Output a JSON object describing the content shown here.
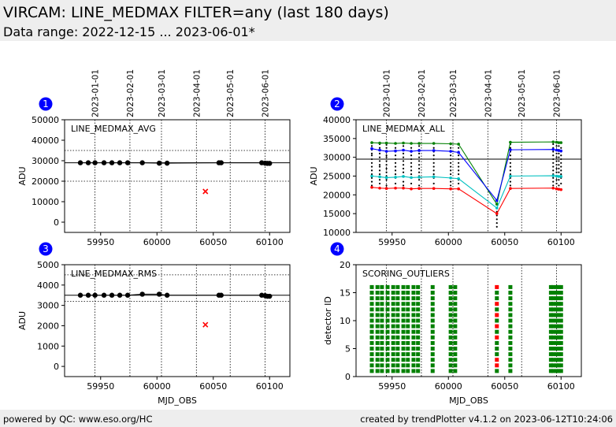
{
  "header": {
    "title": "VIRCAM: LINE_MEDMAX FILTER=any (last 180 days)",
    "subtitle": "Data range: 2022-12-15 ... 2023-06-01*"
  },
  "footer": {
    "left": "powered by QC: www.eso.org/HC",
    "right": "created by trendPlotter v4.1.2 on 2023-06-12T10:24:06"
  },
  "colors": {
    "badge": "#0000ff",
    "ok": "#000000",
    "outlier": "#ff0000",
    "score_ok": "#008000"
  },
  "chart_data": [
    {
      "id": "1",
      "type": "scatter",
      "title": "LINE_MEDMAX_AVG",
      "xlabel": "",
      "ylabel": "ADU",
      "xlim": [
        59918,
        60118
      ],
      "ylim": [
        -5000,
        50000
      ],
      "xticks": [
        59950,
        60000,
        60050,
        60100
      ],
      "xtick_labels": [
        "59950",
        "60000",
        "60050",
        "60100"
      ],
      "yticks": [
        0,
        10000,
        20000,
        30000,
        40000,
        50000
      ],
      "yticklabels": [
        "0",
        "10000",
        "20000",
        "30000",
        "40000",
        "50000"
      ],
      "date_ticks": [
        {
          "mjd": 59945,
          "label": "2023-01-01"
        },
        {
          "mjd": 59976,
          "label": "2023-02-01"
        },
        {
          "mjd": 60004,
          "label": "2023-03-01"
        },
        {
          "mjd": 60035,
          "label": "2023-04-01"
        },
        {
          "mjd": 60065,
          "label": "2023-05-01"
        },
        {
          "mjd": 60096,
          "label": "2023-06-01"
        }
      ],
      "hlines_solid": [
        29000
      ],
      "hlines_dotted": [
        20000,
        35000
      ],
      "series": [
        {
          "marker": "dot",
          "color": "#000000",
          "connect": true,
          "x": [
            59932,
            59939,
            59945,
            59953,
            59960,
            59967,
            59974,
            59987,
            60002,
            60009,
            60055,
            60057,
            60093,
            60096,
            60098,
            60100
          ],
          "y": [
            29000,
            29000,
            29000,
            29000,
            29000,
            29000,
            29000,
            29000,
            28800,
            28800,
            29000,
            29000,
            29000,
            28800,
            28700,
            28700
          ]
        },
        {
          "marker": "x",
          "color": "#ff0000",
          "connect": false,
          "x": [
            60043
          ],
          "y": [
            15000
          ]
        }
      ]
    },
    {
      "id": "2",
      "type": "line",
      "title": "LINE_MEDMAX_ALL",
      "xlabel": "",
      "ylabel": "ADU",
      "xlim": [
        59918,
        60118
      ],
      "ylim": [
        10000,
        40000
      ],
      "xticks": [
        59950,
        60000,
        60050,
        60100
      ],
      "xtick_labels": [
        "59950",
        "60000",
        "60050",
        "60100"
      ],
      "yticks": [
        10000,
        15000,
        20000,
        25000,
        30000,
        35000,
        40000
      ],
      "yticklabels": [
        "10000",
        "15000",
        "20000",
        "25000",
        "30000",
        "35000",
        "40000"
      ],
      "date_ticks": [
        {
          "mjd": 59945,
          "label": "2023-01-01"
        },
        {
          "mjd": 59976,
          "label": "2023-02-01"
        },
        {
          "mjd": 60004,
          "label": "2023-03-01"
        },
        {
          "mjd": 60035,
          "label": "2023-04-01"
        },
        {
          "mjd": 60065,
          "label": "2023-05-01"
        },
        {
          "mjd": 60096,
          "label": "2023-06-01"
        }
      ],
      "hlines_solid": [
        29500
      ],
      "hlines_dotted": [],
      "x": [
        59932,
        59939,
        59945,
        59953,
        59960,
        59967,
        59974,
        59987,
        60002,
        60009,
        60043,
        60055,
        60093,
        60096,
        60098,
        60100
      ],
      "series": [
        {
          "color": "#008000",
          "y": [
            33900,
            33800,
            33800,
            33700,
            33800,
            33700,
            33700,
            33700,
            33600,
            33500,
            17500,
            34000,
            34100,
            34000,
            33900,
            33900
          ]
        },
        {
          "color": "#0000ff",
          "y": [
            32300,
            31900,
            31600,
            31700,
            31900,
            31600,
            31800,
            31800,
            31600,
            31300,
            18500,
            32000,
            32100,
            31900,
            31800,
            31700
          ]
        },
        {
          "color": "#00c0c0",
          "y": [
            25000,
            24800,
            24600,
            24700,
            24900,
            24600,
            24700,
            24800,
            24500,
            24300,
            16500,
            25000,
            25100,
            25000,
            24900,
            24900
          ]
        },
        {
          "color": "#ff0000",
          "y": [
            22000,
            21800,
            21700,
            21800,
            21800,
            21600,
            21700,
            21700,
            21600,
            21600,
            15000,
            21700,
            21800,
            21600,
            21500,
            21400
          ]
        }
      ],
      "detector_points": [
        {
          "x": 59932,
          "y": [
            22500,
            23500,
            24500,
            25500,
            26500,
            27500,
            28500,
            29500,
            30500,
            31000,
            32000,
            33000
          ]
        },
        {
          "x": 59939,
          "y": [
            23000,
            24000,
            25500,
            26500,
            27500,
            28000,
            29000,
            30000,
            31000,
            32500,
            33500
          ]
        },
        {
          "x": 59945,
          "y": [
            22500,
            24000,
            25000,
            26000,
            27000,
            28000,
            29000,
            30000,
            30500,
            31500,
            32500,
            33300
          ]
        },
        {
          "x": 59953,
          "y": [
            23000,
            24500,
            25500,
            26500,
            27500,
            28500,
            29500,
            30500,
            31500,
            32500
          ]
        },
        {
          "x": 59960,
          "y": [
            22500,
            23500,
            25000,
            26000,
            27000,
            28000,
            29000,
            30000,
            31000,
            32000,
            33000
          ]
        },
        {
          "x": 59967,
          "y": [
            23000,
            24500,
            25500,
            26500,
            27500,
            28500,
            29500,
            30500,
            31500,
            32500
          ]
        },
        {
          "x": 59974,
          "y": [
            22500,
            24000,
            25000,
            26000,
            27000,
            28000,
            29000,
            30000,
            31000,
            32000,
            33000
          ]
        },
        {
          "x": 59987,
          "y": [
            23000,
            24500,
            25500,
            26500,
            27500,
            28500,
            29500,
            30500,
            31500,
            32500
          ]
        },
        {
          "x": 60002,
          "y": [
            22500,
            23500,
            24500,
            25500,
            26500,
            27500,
            28500,
            29500,
            30500,
            31500,
            32500
          ]
        },
        {
          "x": 60009,
          "y": [
            23000,
            24000,
            25500,
            26500,
            27500,
            28500,
            29500,
            30500,
            31500,
            32500
          ]
        },
        {
          "x": 60043,
          "y": [
            11500,
            12500,
            13500,
            14500,
            15500,
            16500,
            17500
          ]
        },
        {
          "x": 60055,
          "y": [
            22500,
            23500,
            24500,
            25500,
            26500,
            27500,
            28500,
            29500,
            30500,
            31500,
            32500,
            33500
          ]
        },
        {
          "x": 60093,
          "y": [
            22500,
            23500,
            24500,
            25500,
            26500,
            27500,
            28500,
            29500,
            30500,
            31500,
            32500,
            33500
          ]
        },
        {
          "x": 60096,
          "y": [
            23000,
            24000,
            25000,
            26000,
            27000,
            28000,
            29000,
            30000,
            31000,
            32000,
            33000
          ]
        },
        {
          "x": 60098,
          "y": [
            22500,
            24000,
            25000,
            26000,
            27000,
            28000,
            29000,
            30000,
            31000,
            32000,
            33000
          ]
        },
        {
          "x": 60100,
          "y": [
            23000,
            24500,
            25500,
            26500,
            27500,
            28500,
            29500,
            30500,
            31500,
            32500
          ]
        }
      ]
    },
    {
      "id": "3",
      "type": "scatter",
      "title": "LINE_MEDMAX_RMS",
      "xlabel": "MJD_OBS",
      "ylabel": "ADU",
      "xlim": [
        59918,
        60118
      ],
      "ylim": [
        -500,
        5000
      ],
      "xticks": [
        59950,
        60000,
        60050,
        60100
      ],
      "xtick_labels": [
        "59950",
        "60000",
        "60050",
        "60100"
      ],
      "yticks": [
        0,
        1000,
        2000,
        3000,
        4000,
        5000
      ],
      "yticklabels": [
        "0",
        "1000",
        "2000",
        "3000",
        "4000",
        "5000"
      ],
      "date_ticks": [
        {
          "mjd": 59945,
          "label": ""
        },
        {
          "mjd": 59976,
          "label": ""
        },
        {
          "mjd": 60004,
          "label": ""
        },
        {
          "mjd": 60035,
          "label": ""
        },
        {
          "mjd": 60065,
          "label": ""
        },
        {
          "mjd": 60096,
          "label": ""
        }
      ],
      "hlines_solid": [
        3500
      ],
      "hlines_dotted": [
        3200,
        4500
      ],
      "series": [
        {
          "marker": "dot",
          "color": "#000000",
          "connect": true,
          "x": [
            59932,
            59939,
            59945,
            59953,
            59960,
            59967,
            59974,
            59987,
            60002,
            60009,
            60055,
            60057,
            60093,
            60096,
            60098,
            60100
          ],
          "y": [
            3500,
            3500,
            3500,
            3500,
            3500,
            3500,
            3500,
            3550,
            3550,
            3500,
            3500,
            3500,
            3500,
            3480,
            3450,
            3450
          ]
        },
        {
          "marker": "x",
          "color": "#ff0000",
          "connect": false,
          "x": [
            60043
          ],
          "y": [
            2050
          ]
        }
      ]
    },
    {
      "id": "4",
      "type": "scatter",
      "title": "SCORING_OUTLIERS",
      "xlabel": "MJD_OBS",
      "ylabel": "detector ID",
      "xlim": [
        59918,
        60118
      ],
      "ylim": [
        0,
        20
      ],
      "xticks": [
        59950,
        60000,
        60050,
        60100
      ],
      "xtick_labels": [
        "59950",
        "60000",
        "60050",
        "60100"
      ],
      "yticks": [
        0,
        5,
        10,
        15,
        20
      ],
      "yticklabels": [
        "0",
        "5",
        "10",
        "15",
        "20"
      ],
      "date_ticks": [
        {
          "mjd": 59945,
          "label": ""
        },
        {
          "mjd": 59976,
          "label": ""
        },
        {
          "mjd": 60004,
          "label": ""
        },
        {
          "mjd": 60035,
          "label": ""
        },
        {
          "mjd": 60065,
          "label": ""
        },
        {
          "mjd": 60096,
          "label": ""
        }
      ],
      "detector_ids": [
        1,
        2,
        3,
        4,
        5,
        6,
        7,
        8,
        9,
        10,
        11,
        12,
        13,
        14,
        15,
        16
      ],
      "columns_ok": [
        59932,
        59937,
        59941,
        59946,
        59951,
        59955,
        59960,
        59964,
        59969,
        59973,
        59986,
        60002,
        60006,
        60055,
        60091,
        60093,
        60096,
        60098,
        60100
      ],
      "columns_outlier": [
        {
          "x": 60043,
          "red_ids": [
            2,
            3,
            7,
            9,
            11,
            13,
            16
          ]
        }
      ]
    }
  ]
}
